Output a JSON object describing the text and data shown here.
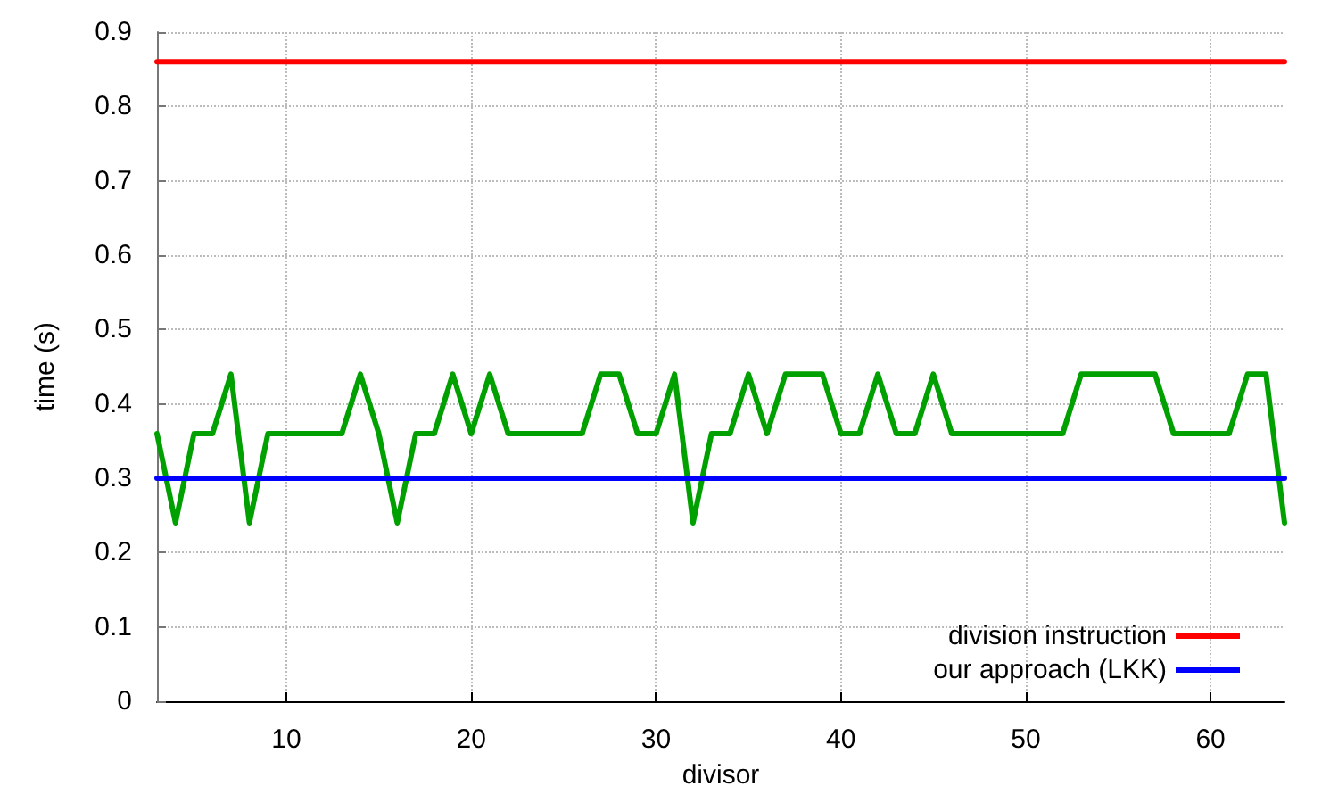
{
  "chart_data": {
    "type": "line",
    "xlabel": "divisor",
    "ylabel": "time (s)",
    "xlim": [
      3,
      64
    ],
    "xticks": [
      10,
      20,
      30,
      40,
      50,
      60
    ],
    "ylim": [
      0,
      0.9
    ],
    "yticks": [
      0,
      0.1,
      0.2,
      0.3,
      0.4,
      0.5,
      0.6,
      0.7,
      0.8,
      0.9
    ],
    "grid": true,
    "legend": "bottom right",
    "marker": "none",
    "line_style": "solid",
    "x": [
      3,
      4,
      5,
      6,
      7,
      8,
      9,
      10,
      11,
      12,
      13,
      14,
      15,
      16,
      17,
      18,
      19,
      20,
      21,
      22,
      23,
      24,
      25,
      26,
      27,
      28,
      29,
      30,
      31,
      32,
      33,
      34,
      35,
      36,
      37,
      38,
      39,
      40,
      41,
      42,
      43,
      44,
      45,
      46,
      47,
      48,
      49,
      50,
      51,
      52,
      53,
      54,
      55,
      56,
      57,
      58,
      59,
      60,
      61,
      62,
      63,
      64
    ],
    "series": [
      {
        "name": "division instruction",
        "color": "#ff0000",
        "values": [
          0.86,
          0.86,
          0.86,
          0.86,
          0.86,
          0.86,
          0.86,
          0.86,
          0.86,
          0.86,
          0.86,
          0.86,
          0.86,
          0.86,
          0.86,
          0.86,
          0.86,
          0.86,
          0.86,
          0.86,
          0.86,
          0.86,
          0.86,
          0.86,
          0.86,
          0.86,
          0.86,
          0.86,
          0.86,
          0.86,
          0.86,
          0.86,
          0.86,
          0.86,
          0.86,
          0.86,
          0.86,
          0.86,
          0.86,
          0.86,
          0.86,
          0.86,
          0.86,
          0.86,
          0.86,
          0.86,
          0.86,
          0.86,
          0.86,
          0.86,
          0.86,
          0.86,
          0.86,
          0.86,
          0.86,
          0.86,
          0.86,
          0.86,
          0.86,
          0.86,
          0.86,
          0.86
        ]
      },
      {
        "color": "#00a000",
        "values": [
          0.36,
          0.24,
          0.36,
          0.36,
          0.44,
          0.24,
          0.36,
          0.36,
          0.36,
          0.36,
          0.36,
          0.44,
          0.36,
          0.24,
          0.36,
          0.36,
          0.44,
          0.36,
          0.44,
          0.36,
          0.36,
          0.36,
          0.36,
          0.36,
          0.44,
          0.44,
          0.36,
          0.36,
          0.44,
          0.24,
          0.36,
          0.36,
          0.44,
          0.36,
          0.44,
          0.44,
          0.44,
          0.36,
          0.36,
          0.44,
          0.36,
          0.36,
          0.44,
          0.36,
          0.36,
          0.36,
          0.36,
          0.36,
          0.36,
          0.36,
          0.44,
          0.44,
          0.44,
          0.44,
          0.44,
          0.36,
          0.36,
          0.36,
          0.36,
          0.44,
          0.44,
          0.24
        ]
      },
      {
        "name": "our approach (LKK)",
        "color": "#0000ff",
        "values": [
          0.3,
          0.3,
          0.3,
          0.3,
          0.3,
          0.3,
          0.3,
          0.3,
          0.3,
          0.3,
          0.3,
          0.3,
          0.3,
          0.3,
          0.3,
          0.3,
          0.3,
          0.3,
          0.3,
          0.3,
          0.3,
          0.3,
          0.3,
          0.3,
          0.3,
          0.3,
          0.3,
          0.3,
          0.3,
          0.3,
          0.3,
          0.3,
          0.3,
          0.3,
          0.3,
          0.3,
          0.3,
          0.3,
          0.3,
          0.3,
          0.3,
          0.3,
          0.3,
          0.3,
          0.3,
          0.3,
          0.3,
          0.3,
          0.3,
          0.3,
          0.3,
          0.3,
          0.3,
          0.3,
          0.3,
          0.3,
          0.3,
          0.3,
          0.3,
          0.3,
          0.3,
          0.3
        ]
      }
    ]
  }
}
